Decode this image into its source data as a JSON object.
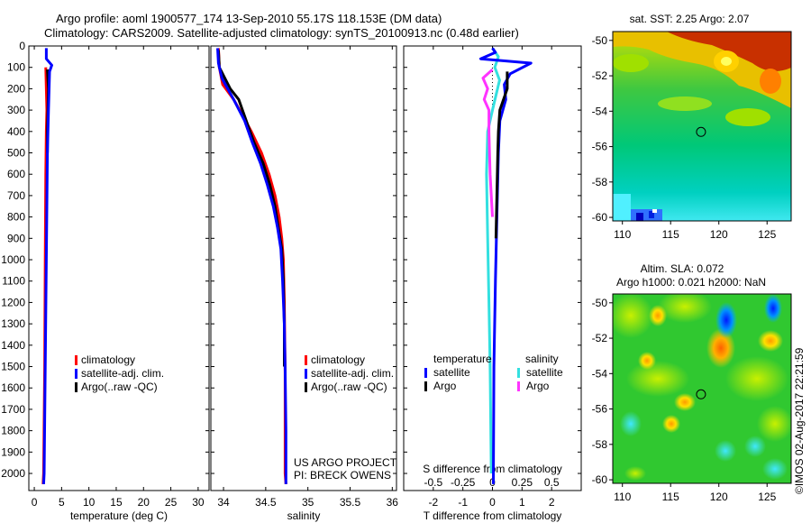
{
  "header": {
    "title_line1": "Argo profile: aoml 1900577_174 13-Sep-2010 55.17S 118.153E (DM data)",
    "title_line2": "Climatology: CARS2009. Satellite-adjusted climatology: synTS_20100913.nc (0.48d earlier)"
  },
  "colors": {
    "climatology": "#ff0000",
    "satellite": "#0000ff",
    "argo": "#000000",
    "sal_satellite": "#33e0e0",
    "sal_argo": "#ff33ff"
  },
  "chart_data": [
    {
      "type": "line",
      "name": "temperature-profile",
      "xlabel": "temperature (deg C)",
      "ylabel": "",
      "xlim": [
        -1,
        32
      ],
      "ylim": [
        2080,
        0
      ],
      "xticks": [
        0,
        5,
        10,
        15,
        20,
        25,
        30
      ],
      "yticks": [
        0,
        100,
        200,
        300,
        400,
        500,
        600,
        700,
        800,
        900,
        1000,
        1100,
        1200,
        1300,
        1400,
        1500,
        1600,
        1700,
        1800,
        1900,
        2000
      ],
      "legend": {
        "placement": "lower-center",
        "entries": [
          "climatology",
          "satellite-adj. clim.",
          "Argo(..raw -QC)"
        ]
      },
      "series": [
        {
          "key": "climatology",
          "color": "#ff0000",
          "points": [
            [
              2.1,
              100
            ],
            [
              2.2,
              200
            ],
            [
              2.3,
              300
            ],
            [
              2.2,
              400
            ],
            [
              2.1,
              600
            ],
            [
              2.0,
              1000
            ],
            [
              1.9,
              1500
            ],
            [
              1.7,
              2000
            ],
            [
              1.6,
              2050
            ]
          ]
        },
        {
          "key": "argo",
          "color": "#000000",
          "points": [
            [
              2.4,
              110
            ],
            [
              2.6,
              200
            ],
            [
              2.5,
              300
            ],
            [
              2.4,
              400
            ],
            [
              2.4,
              500
            ]
          ]
        },
        {
          "key": "satellite",
          "color": "#0000ff",
          "points": [
            [
              2.2,
              10
            ],
            [
              2.2,
              60
            ],
            [
              3.2,
              90
            ],
            [
              2.8,
              120
            ],
            [
              2.6,
              300
            ],
            [
              2.4,
              500
            ],
            [
              2.2,
              1000
            ],
            [
              2.0,
              1500
            ],
            [
              1.8,
              2000
            ],
            [
              1.7,
              2050
            ]
          ]
        }
      ]
    },
    {
      "type": "line",
      "name": "salinity-profile",
      "xlabel": "salinity",
      "ylabel": "",
      "xlim": [
        33.85,
        36.05
      ],
      "ylim": [
        2080,
        0
      ],
      "xticks": [
        34,
        34.5,
        35,
        35.5,
        36
      ],
      "legend": {
        "placement": "lower-right",
        "entries": [
          "climatology",
          "satellite-adj. clim.",
          "Argo(..raw -QC)"
        ]
      },
      "annotation": [
        "US ARGO PROJECT",
        "PI: BRECK OWENS"
      ],
      "series": [
        {
          "key": "climatology",
          "color": "#ff0000",
          "points": [
            [
              33.94,
              10
            ],
            [
              33.95,
              100
            ],
            [
              33.99,
              180
            ],
            [
              34.12,
              250
            ],
            [
              34.22,
              320
            ],
            [
              34.33,
              400
            ],
            [
              34.45,
              500
            ],
            [
              34.54,
              600
            ],
            [
              34.61,
              700
            ],
            [
              34.66,
              800
            ],
            [
              34.69,
              900
            ],
            [
              34.71,
              1000
            ],
            [
              34.72,
              1200
            ],
            [
              34.73,
              1500
            ],
            [
              34.73,
              2000
            ],
            [
              34.74,
              2050
            ]
          ]
        },
        {
          "key": "argo",
          "color": "#000000",
          "points": [
            [
              33.94,
              20
            ],
            [
              33.95,
              100
            ],
            [
              34.08,
              200
            ],
            [
              34.18,
              250
            ],
            [
              34.27,
              350
            ],
            [
              34.36,
              450
            ],
            [
              34.47,
              550
            ],
            [
              34.55,
              650
            ],
            [
              34.61,
              750
            ],
            [
              34.65,
              850
            ],
            [
              34.69,
              950
            ],
            [
              34.71,
              1100
            ],
            [
              34.72,
              1300
            ],
            [
              34.72,
              1500
            ]
          ]
        },
        {
          "key": "satellite",
          "color": "#0000ff",
          "points": [
            [
              33.93,
              10
            ],
            [
              33.94,
              80
            ],
            [
              33.98,
              150
            ],
            [
              34.12,
              250
            ],
            [
              34.25,
              350
            ],
            [
              34.34,
              450
            ],
            [
              34.44,
              550
            ],
            [
              34.52,
              650
            ],
            [
              34.59,
              750
            ],
            [
              34.64,
              850
            ],
            [
              34.68,
              950
            ],
            [
              34.7,
              1100
            ],
            [
              34.72,
              1300
            ],
            [
              34.73,
              1500
            ],
            [
              34.74,
              1800
            ],
            [
              34.74,
              2050
            ]
          ]
        }
      ]
    },
    {
      "type": "line",
      "name": "difference-profile",
      "xlabel": "T difference from climatology",
      "xlabel_top": "S difference from climatology",
      "xlim": [
        -3,
        3
      ],
      "ylim": [
        2080,
        0
      ],
      "xticks_bottom": [
        -2,
        -1,
        0,
        1,
        2
      ],
      "xticks_top": [
        -0.5,
        -0.25,
        0,
        0.25,
        0.5
      ],
      "xlim_salinity": [
        -0.75,
        0.75
      ],
      "legend": {
        "placement": "lower-center",
        "groups": [
          {
            "heading": "temperature",
            "entries": [
              "satellite",
              "Argo"
            ]
          },
          {
            "heading": "salinity",
            "entries": [
              "satellite",
              "Argo"
            ]
          }
        ]
      },
      "series": [
        {
          "key": "sal_satellite",
          "color": "#33e0e0",
          "axis": "salinity",
          "points": [
            [
              0.0,
              10
            ],
            [
              0.05,
              50
            ],
            [
              0.02,
              100
            ],
            [
              0.06,
              160
            ],
            [
              0.0,
              300
            ],
            [
              -0.04,
              400
            ],
            [
              -0.05,
              600
            ],
            [
              -0.04,
              900
            ],
            [
              -0.03,
              1200
            ],
            [
              -0.02,
              1500
            ],
            [
              -0.01,
              2000
            ]
          ]
        },
        {
          "key": "sal_argo",
          "color": "#ff33ff",
          "axis": "salinity",
          "points": [
            [
              0.0,
              110
            ],
            [
              -0.08,
              150
            ],
            [
              -0.04,
              200
            ],
            [
              -0.07,
              250
            ],
            [
              -0.03,
              300
            ],
            [
              -0.03,
              400
            ],
            [
              -0.02,
              600
            ],
            [
              0.0,
              800
            ]
          ]
        },
        {
          "key": "satellite",
          "color": "#0000ff",
          "axis": "temperature",
          "points": [
            [
              0.0,
              10
            ],
            [
              0.1,
              30
            ],
            [
              -0.4,
              60
            ],
            [
              1.3,
              80
            ],
            [
              0.6,
              130
            ],
            [
              0.4,
              180
            ],
            [
              0.45,
              250
            ],
            [
              0.25,
              350
            ],
            [
              0.2,
              500
            ],
            [
              0.15,
              800
            ],
            [
              0.1,
              1100
            ],
            [
              0.05,
              1500
            ],
            [
              0.03,
              2050
            ]
          ]
        },
        {
          "key": "argo",
          "color": "#000000",
          "axis": "temperature",
          "points": [
            [
              0.5,
              120
            ],
            [
              0.5,
              200
            ],
            [
              0.25,
              300
            ],
            [
              0.2,
              400
            ],
            [
              0.18,
              500
            ],
            [
              0.15,
              700
            ],
            [
              0.12,
              900
            ]
          ]
        }
      ]
    }
  ],
  "maps": [
    {
      "name": "sst-map",
      "title": "sat. SST: 2.25 Argo: 2.07",
      "xticks": [
        110,
        115,
        120,
        125
      ],
      "yticks": [
        -50,
        -52,
        -54,
        -56,
        -58,
        -60
      ],
      "xlim": [
        109,
        127.5
      ],
      "ylim": [
        -49.5,
        -60.2
      ],
      "marker": [
        118.15,
        -55.17
      ]
    },
    {
      "name": "sla-map",
      "title_line1": "Altim. SLA: 0.072",
      "title_line2": "Argo h1000: 0.021 h2000: NaN",
      "xticks": [
        110,
        115,
        120,
        125
      ],
      "yticks": [
        -50,
        -52,
        -54,
        -56,
        -58,
        -60
      ],
      "xlim": [
        109,
        127.5
      ],
      "ylim": [
        -49.5,
        -60.2
      ],
      "marker": [
        118.15,
        -55.17
      ]
    }
  ],
  "credit": "©IMOS 02-Aug-2017 22:21:59"
}
